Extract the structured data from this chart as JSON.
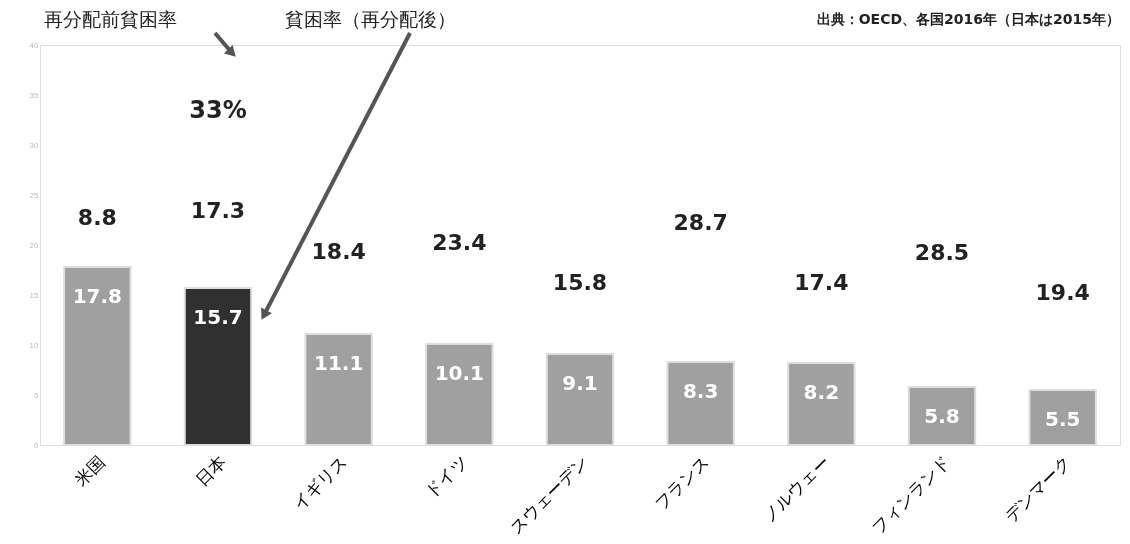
{
  "chart_data": {
    "type": "bar",
    "categories": [
      "米国",
      "日本",
      "イギリス",
      "ドイツ",
      "スウェーデン",
      "フランス",
      "ノルウェー",
      "フィンランド",
      "デンマーク"
    ],
    "values": [
      17.8,
      15.7,
      11.1,
      10.1,
      9.1,
      8.3,
      8.2,
      5.8,
      5.5
    ],
    "colors": [
      "#a0a0a0",
      "#303030",
      "#a0a0a0",
      "#a0a0a0",
      "#a0a0a0",
      "#a0a0a0",
      "#a0a0a0",
      "#a0a0a0",
      "#a0a0a0"
    ],
    "data_labels": true,
    "ylim": [
      0,
      40
    ],
    "yticks": [
      0,
      5,
      10,
      15,
      20,
      25,
      30,
      35,
      40
    ],
    "grid": false,
    "annotations": [
      "再分配前貧困率",
      "貧困率（再分配後）",
      "出典：OECD、各国2016年（日本は2015年）",
      "33%",
      "8.8",
      "17.3",
      "18.4",
      "23.4",
      "15.8",
      "28.7",
      "17.4",
      "28.5",
      "19.4"
    ]
  }
}
